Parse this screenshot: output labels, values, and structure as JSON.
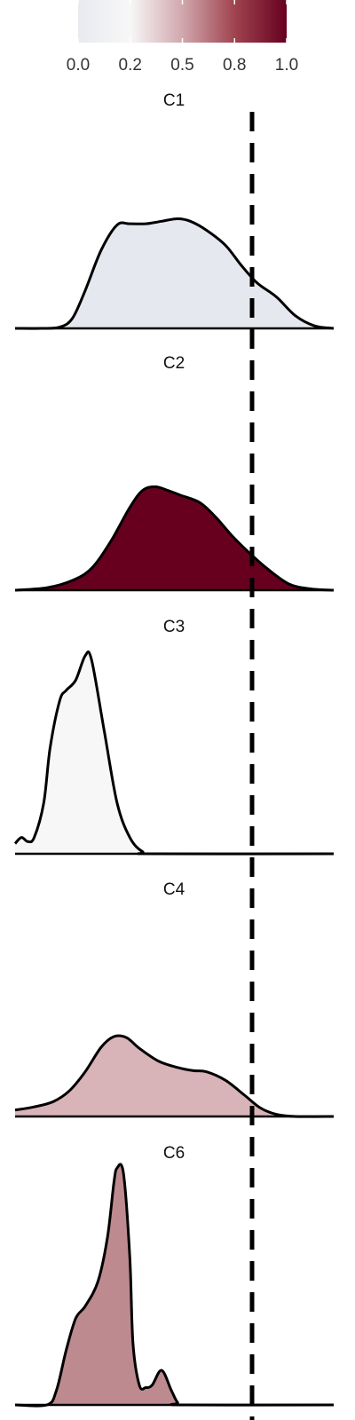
{
  "chart_data": {
    "type": "area",
    "title": "",
    "xlabel": "",
    "ylabel": "",
    "threshold_line": {
      "style": "dashed",
      "color": "#000000"
    },
    "colorbar": {
      "orientation": "horizontal",
      "placement": "top",
      "range": [
        0,
        1
      ],
      "tick_labels": [
        "0.0",
        "0.2",
        "0.5",
        "0.8",
        "1.0"
      ],
      "colors": [
        "#e8eaf0",
        "#f7f7f7",
        "#d1a7ad",
        "#a04450",
        "#67001f"
      ]
    },
    "panels": [
      {
        "name": "C1",
        "fill": "#e5e8ef",
        "value": 0.0,
        "x": [
          0.0,
          0.08,
          0.14,
          0.18,
          0.22,
          0.27,
          0.32,
          0.36,
          0.41,
          0.46,
          0.51,
          0.55,
          0.6,
          0.66,
          0.71,
          0.76,
          0.82,
          0.88,
          0.94,
          1.0
        ],
        "density": [
          0,
          0,
          0.01,
          0.08,
          0.3,
          0.62,
          0.82,
          0.83,
          0.83,
          0.85,
          0.87,
          0.85,
          0.78,
          0.66,
          0.5,
          0.36,
          0.25,
          0.1,
          0.02,
          0
        ]
      },
      {
        "name": "C2",
        "fill": "#67001f",
        "value": 1.0,
        "x": [
          0.0,
          0.1,
          0.18,
          0.24,
          0.3,
          0.36,
          0.4,
          0.44,
          0.48,
          0.52,
          0.58,
          0.63,
          0.68,
          0.73,
          0.79,
          0.86,
          0.93,
          1.0
        ],
        "density": [
          0,
          0.02,
          0.08,
          0.18,
          0.4,
          0.68,
          0.82,
          0.85,
          0.82,
          0.78,
          0.72,
          0.6,
          0.45,
          0.32,
          0.18,
          0.05,
          0.01,
          0
        ]
      },
      {
        "name": "C3",
        "fill": "#f7f7f7",
        "value": 0.15,
        "x": [
          0.0,
          0.02,
          0.04,
          0.06,
          0.09,
          0.11,
          0.14,
          0.16,
          0.19,
          0.22,
          0.24,
          0.28,
          0.32,
          0.36,
          0.4,
          0.44,
          1.0
        ],
        "density": [
          0.05,
          0.08,
          0.06,
          0.08,
          0.25,
          0.52,
          0.75,
          0.8,
          0.85,
          0.97,
          0.95,
          0.6,
          0.25,
          0.08,
          0.01,
          0,
          0
        ]
      },
      {
        "name": "C4",
        "fill": "#d8b4b9",
        "value": 0.45,
        "x": [
          0.0,
          0.06,
          0.12,
          0.17,
          0.22,
          0.27,
          0.31,
          0.35,
          0.39,
          0.45,
          0.51,
          0.56,
          0.6,
          0.66,
          0.72,
          0.77,
          0.82,
          0.88,
          1.0
        ],
        "density": [
          0.06,
          0.09,
          0.14,
          0.24,
          0.42,
          0.65,
          0.75,
          0.74,
          0.64,
          0.52,
          0.46,
          0.43,
          0.42,
          0.34,
          0.2,
          0.08,
          0.02,
          0,
          0
        ]
      },
      {
        "name": "C6",
        "fill": "#bd8a8f",
        "value": 0.6,
        "x": [
          0.0,
          0.1,
          0.13,
          0.16,
          0.19,
          0.22,
          0.26,
          0.29,
          0.31,
          0.32,
          0.34,
          0.36,
          0.37,
          0.39,
          0.41,
          0.43,
          0.46,
          0.49,
          0.51,
          0.53,
          1.0
        ],
        "density": [
          0,
          0,
          0.06,
          0.22,
          0.35,
          0.4,
          0.5,
          0.68,
          0.9,
          0.96,
          0.94,
          0.6,
          0.25,
          0.08,
          0.07,
          0.08,
          0.14,
          0.06,
          0.01,
          0,
          0
        ]
      }
    ]
  }
}
